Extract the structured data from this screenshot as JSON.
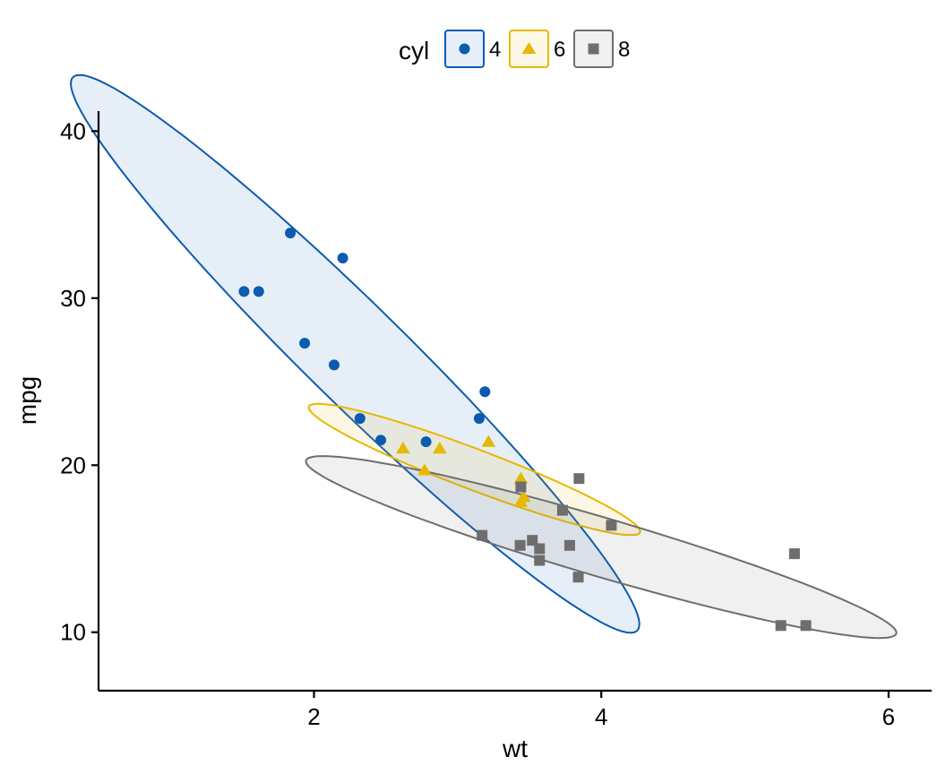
{
  "chart_data": {
    "type": "scatter",
    "title": "",
    "xlabel": "wt",
    "ylabel": "mpg",
    "xlim": [
      0.5,
      6.3
    ],
    "ylim": [
      6.5,
      41.2
    ],
    "x_ticks": [
      2,
      4,
      6
    ],
    "y_ticks": [
      10,
      20,
      30,
      40
    ],
    "x_tick_labels": [
      "2",
      "4",
      "6"
    ],
    "y_tick_labels": [
      "10",
      "20",
      "30",
      "40"
    ],
    "grid": false,
    "legend": {
      "title": "cyl",
      "position": "top"
    },
    "series": [
      {
        "name": "4",
        "color": "#0C5BB0",
        "fill": "rgba(12,91,176,0.10)",
        "marker": "circle",
        "x": [
          1.513,
          1.615,
          1.835,
          1.935,
          2.14,
          2.2,
          2.32,
          2.465,
          2.78,
          3.15,
          3.19
        ],
        "y": [
          30.4,
          30.4,
          33.9,
          27.3,
          26.0,
          32.4,
          22.8,
          21.5,
          21.4,
          22.8,
          24.4
        ],
        "ellipse": {
          "cx": 2.286,
          "cy": 26.664,
          "a_x": 1.92,
          "a_y": -16.7,
          "b_x": 0.48,
          "b_y": 0.06
        }
      },
      {
        "name": "6",
        "color": "#E7B800",
        "fill": "rgba(231,184,0,0.10)",
        "marker": "triangle",
        "x": [
          2.62,
          2.875,
          3.215,
          3.44,
          3.46,
          3.44,
          2.77
        ],
        "y": [
          21.0,
          21.0,
          21.4,
          19.2,
          18.1,
          17.8,
          19.7
        ],
        "ellipse": {
          "cx": 3.117,
          "cy": 19.743,
          "a_x": 1.15,
          "a_y": -3.8,
          "b_x": 0.09,
          "b_y": 1.0
        }
      },
      {
        "name": "8",
        "color": "#6E6E6E",
        "fill": "rgba(110,110,110,0.10)",
        "marker": "square",
        "x": [
          3.44,
          3.57,
          4.07,
          3.73,
          3.78,
          5.25,
          5.424,
          5.345,
          3.52,
          3.435,
          3.84,
          3.845,
          3.17,
          3.57
        ],
        "y": [
          18.7,
          14.3,
          16.4,
          17.3,
          15.2,
          10.4,
          10.4,
          14.7,
          15.5,
          15.2,
          13.3,
          19.2,
          15.8,
          15.0
        ],
        "ellipse": {
          "cx": 3.999,
          "cy": 15.1,
          "a_x": 2.05,
          "a_y": -5.25,
          "b_x": 0.15,
          "b_y": 1.45
        }
      }
    ]
  }
}
